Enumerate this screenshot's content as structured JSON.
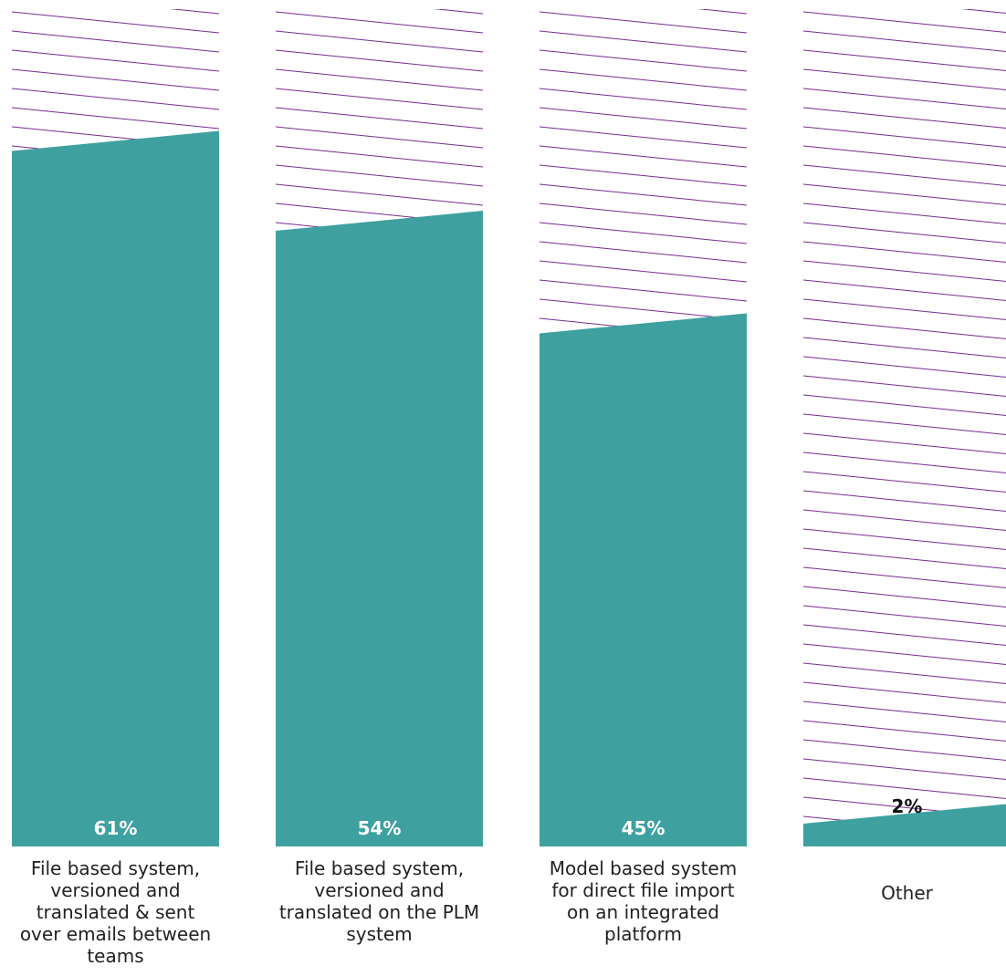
{
  "chart_data": {
    "type": "bar",
    "categories": [
      "File based system,\nversioned and\ntranslated & sent\nover emails between\nteams",
      "File based system,\nversioned and\ntranslated on the PLM\nsystem",
      "Model based system\nfor direct file import\non an integrated\nplatform",
      "Other"
    ],
    "values": [
      61,
      54,
      45,
      2
    ],
    "value_labels": [
      "61%",
      "54%",
      "45%",
      "2%"
    ],
    "unit": "%",
    "ylim": [
      0,
      70
    ],
    "grid": false,
    "legend": "none"
  },
  "colors": {
    "bar": "#3fa0a0",
    "hatch": "#7a2b8f",
    "value_label_inside": "#ffffff",
    "value_label_outside": "#111111",
    "category_label": "#222222"
  }
}
